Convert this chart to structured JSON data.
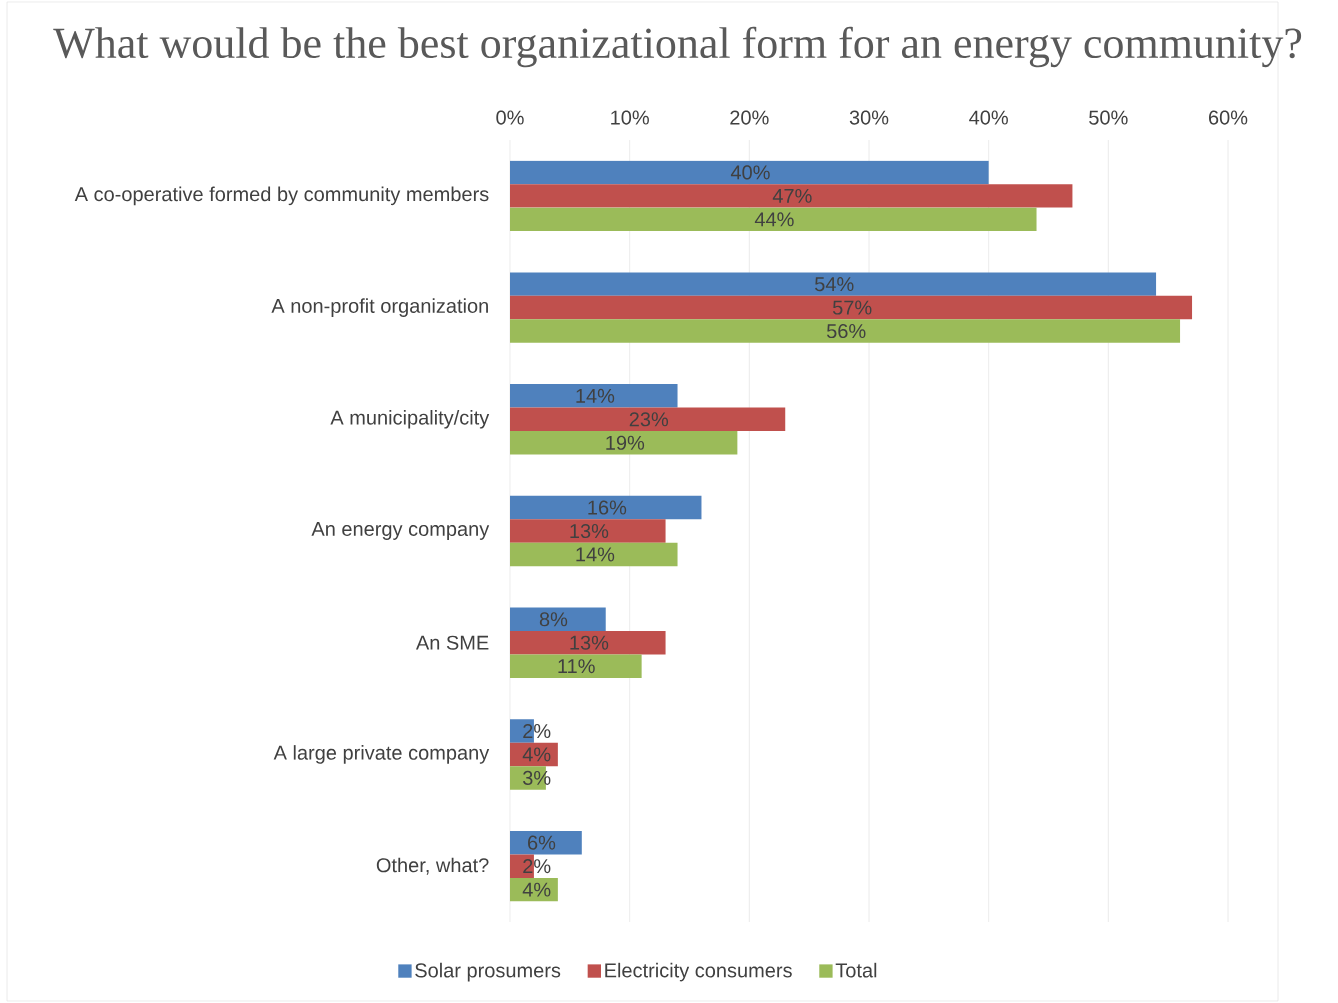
{
  "chart_data": {
    "type": "bar",
    "orientation": "horizontal",
    "title": "What would be the best organizational form for an energy community?",
    "categories": [
      "A co-operative formed by community members",
      "A non-profit organization",
      "A municipality/city",
      "An energy company",
      "An SME",
      "A large private company",
      "Other, what?"
    ],
    "series": [
      {
        "name": "Solar prosumers",
        "color": "#4f81bd",
        "values": [
          40,
          54,
          14,
          16,
          8,
          2,
          6
        ],
        "value_labels": [
          "40%",
          "54%",
          "14%",
          "16%",
          "8%",
          "2%",
          "6%"
        ]
      },
      {
        "name": "Electricity consumers",
        "color": "#c0504d",
        "values": [
          47,
          57,
          23,
          13,
          13,
          4,
          2
        ],
        "value_labels": [
          "47%",
          "57%",
          "23%",
          "13%",
          "13%",
          "4%",
          "2%"
        ]
      },
      {
        "name": "Total",
        "color": "#9bbb59",
        "values": [
          44,
          56,
          19,
          14,
          11,
          3,
          4
        ],
        "value_labels": [
          "44%",
          "56%",
          "19%",
          "14%",
          "11%",
          "3%",
          "4%"
        ]
      }
    ],
    "xlim": [
      0,
      60
    ],
    "xticks": [
      {
        "value": 0,
        "label": "0%"
      },
      {
        "value": 10,
        "label": "10%"
      },
      {
        "value": 20,
        "label": "20%"
      },
      {
        "value": 30,
        "label": "30%"
      },
      {
        "value": 40,
        "label": "40%"
      },
      {
        "value": 50,
        "label": "50%"
      },
      {
        "value": 60,
        "label": "60%"
      }
    ],
    "legend": "bottom",
    "grid": "x"
  }
}
